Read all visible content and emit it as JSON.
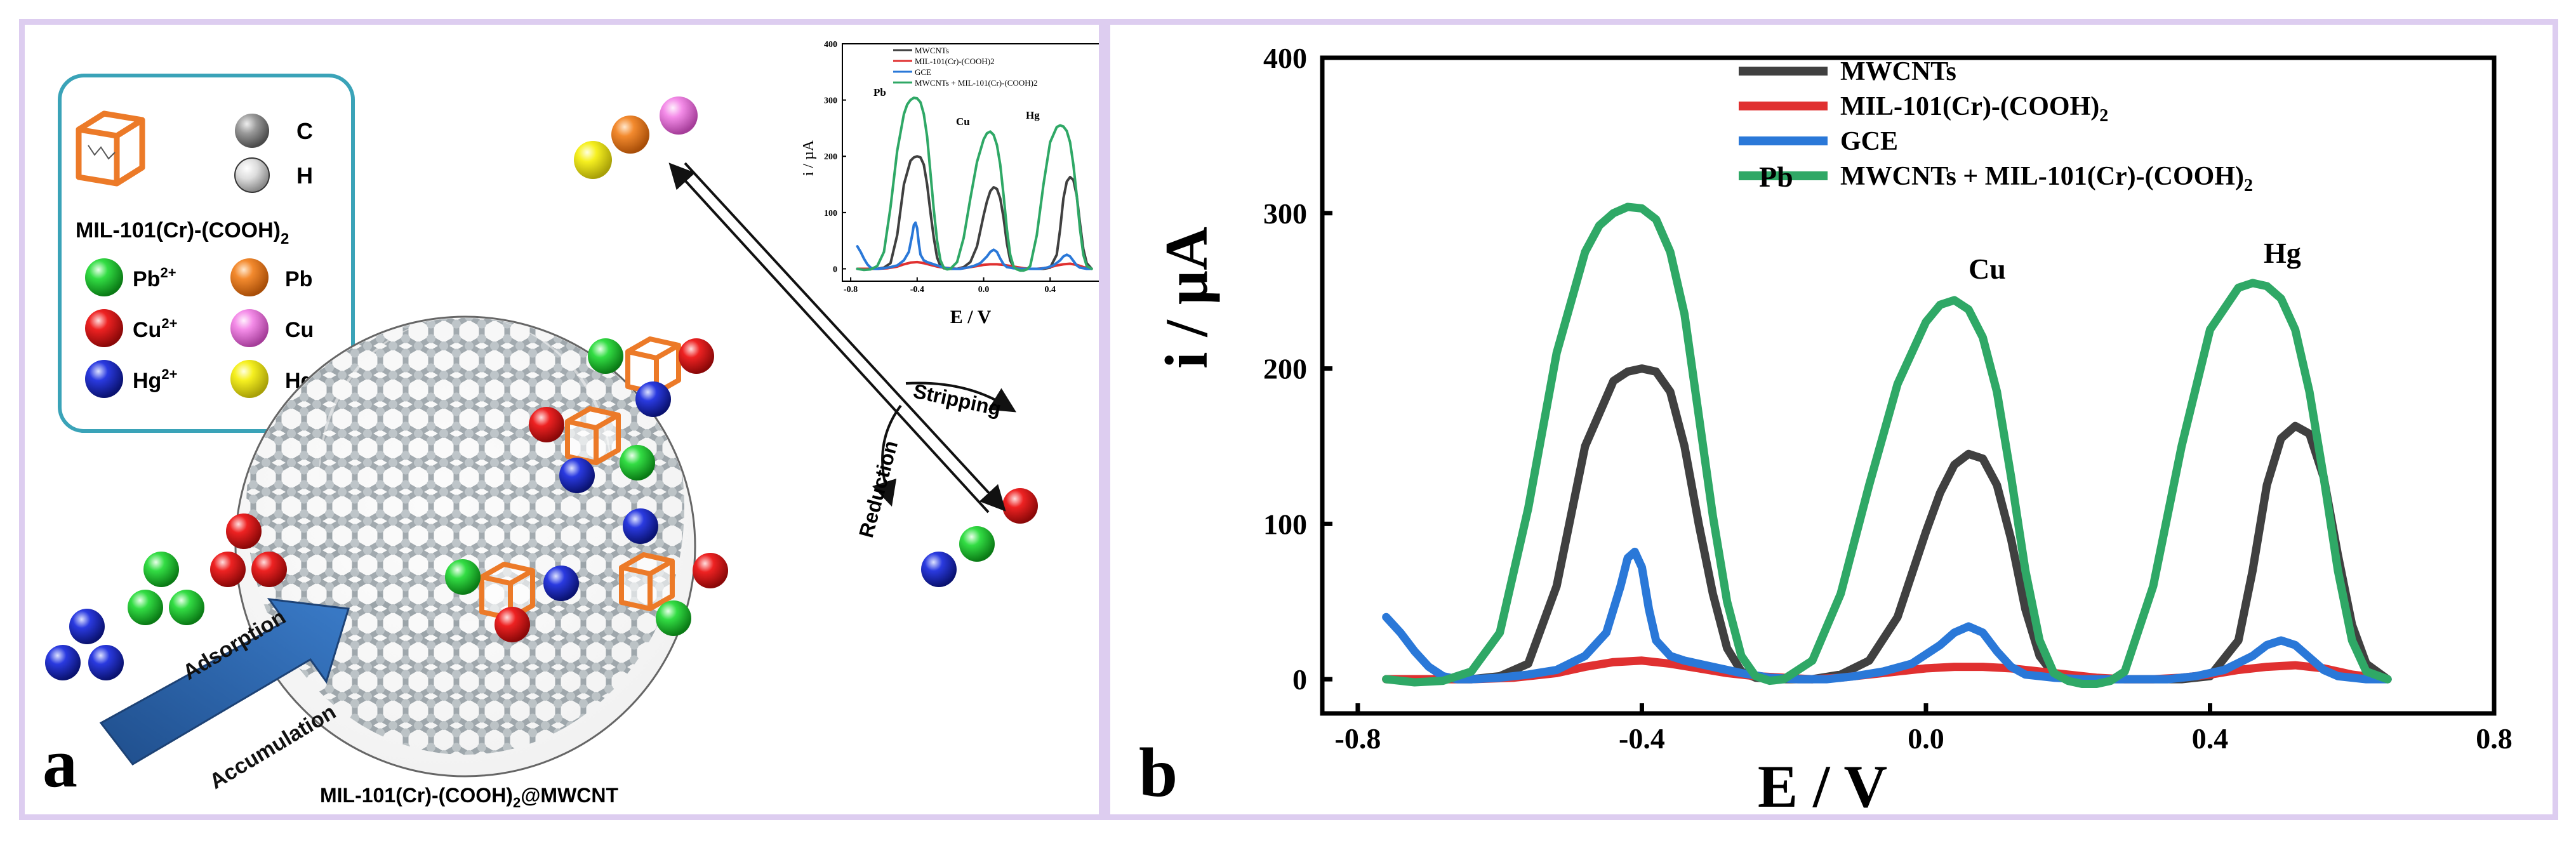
{
  "panel_a": {
    "panel_label": "a",
    "legend": {
      "framework_label": "MIL-101(Cr)-(COOH)",
      "framework_sub": "2",
      "carbon": "C",
      "hydrogen": "H",
      "ions": [
        {
          "symbol": "Pb",
          "charge": "2+",
          "color": "#22cc33"
        },
        {
          "symbol": "Cu",
          "charge": "2+",
          "color": "#e02020"
        },
        {
          "symbol": "Hg",
          "charge": "2+",
          "color": "#2233cc"
        }
      ],
      "metals": [
        {
          "symbol": "Pb",
          "color": "#f08a30"
        },
        {
          "symbol": "Cu",
          "color": "#f27de8"
        },
        {
          "symbol": "Hg",
          "color": "#f6f020"
        }
      ]
    },
    "arrow_labels": {
      "adsorption": "Adsorption",
      "accumulation": "Accumulation",
      "reduction": "Reduction",
      "stripping": "Stripping"
    },
    "composite_label": "MIL-101(Cr)-(COOH)",
    "composite_sub": "2",
    "composite_suffix": "@MWCNT",
    "inset_text": {
      "ylabel": "i / µA",
      "xlabel": "E / V",
      "peaks": [
        "Pb",
        "Cu",
        "Hg"
      ],
      "legend": [
        "MWCNTs",
        "MIL-101(Cr)-(COOH)2",
        "GCE",
        "MWCNTs + MIL-101(Cr)-(COOH)2"
      ]
    }
  },
  "panel_b": {
    "panel_label": "b",
    "peak_labels": {
      "pb": "Pb",
      "cu": "Cu",
      "hg": "Hg"
    }
  },
  "chart_data": {
    "type": "line",
    "title": "",
    "xlabel": "E / V",
    "ylabel": "i / µA",
    "xlim": [
      -0.85,
      0.8
    ],
    "ylim": [
      -22,
      400
    ],
    "xticks": [
      -0.8,
      -0.4,
      0.0,
      0.4,
      0.8
    ],
    "xtick_labels": [
      "-0.8",
      "-0.4",
      "0.0",
      "0.4",
      "0.8"
    ],
    "yticks": [
      0,
      100,
      200,
      300,
      400
    ],
    "ytick_labels": [
      "0",
      "100",
      "200",
      "300",
      "400"
    ],
    "grid": false,
    "legend_position": "top",
    "series": [
      {
        "name": "MWCNTs",
        "color": "#404040",
        "x": [
          -0.76,
          -0.72,
          -0.68,
          -0.64,
          -0.6,
          -0.56,
          -0.52,
          -0.48,
          -0.44,
          -0.42,
          -0.4,
          -0.38,
          -0.36,
          -0.34,
          -0.32,
          -0.3,
          -0.28,
          -0.26,
          -0.24,
          -0.2,
          -0.16,
          -0.12,
          -0.08,
          -0.04,
          0.0,
          0.02,
          0.04,
          0.06,
          0.08,
          0.1,
          0.12,
          0.14,
          0.16,
          0.18,
          0.2,
          0.24,
          0.28,
          0.32,
          0.36,
          0.4,
          0.44,
          0.46,
          0.48,
          0.5,
          0.52,
          0.54,
          0.56,
          0.58,
          0.6,
          0.62,
          0.65
        ],
        "y": [
          0,
          0,
          0,
          0,
          2,
          10,
          60,
          150,
          192,
          198,
          200,
          198,
          185,
          150,
          100,
          55,
          20,
          5,
          1,
          0,
          0,
          3,
          12,
          40,
          95,
          120,
          138,
          145,
          142,
          125,
          90,
          45,
          15,
          3,
          0,
          0,
          0,
          0,
          0,
          2,
          25,
          70,
          125,
          155,
          163,
          158,
          130,
          80,
          35,
          10,
          0
        ]
      },
      {
        "name": "MIL-101(Cr)-(COOH)2",
        "color": "#e03030",
        "x": [
          -0.76,
          -0.7,
          -0.64,
          -0.58,
          -0.52,
          -0.48,
          -0.44,
          -0.4,
          -0.36,
          -0.32,
          -0.28,
          -0.24,
          -0.2,
          -0.16,
          -0.12,
          -0.08,
          -0.04,
          0.0,
          0.04,
          0.08,
          0.12,
          0.16,
          0.2,
          0.24,
          0.28,
          0.32,
          0.36,
          0.4,
          0.44,
          0.48,
          0.52,
          0.56,
          0.6,
          0.65
        ],
        "y": [
          0,
          0,
          0,
          1,
          4,
          8,
          11,
          12,
          10,
          7,
          4,
          2,
          1,
          0,
          1,
          3,
          5,
          7,
          8,
          8,
          7,
          5,
          3,
          1,
          0,
          0,
          1,
          3,
          6,
          8,
          9,
          7,
          3,
          0
        ]
      },
      {
        "name": "GCE",
        "color": "#2a78d8",
        "x": [
          -0.76,
          -0.74,
          -0.72,
          -0.7,
          -0.68,
          -0.66,
          -0.64,
          -0.6,
          -0.56,
          -0.52,
          -0.48,
          -0.45,
          -0.43,
          -0.42,
          -0.41,
          -0.4,
          -0.39,
          -0.38,
          -0.36,
          -0.34,
          -0.3,
          -0.26,
          -0.22,
          -0.18,
          -0.14,
          -0.1,
          -0.06,
          -0.02,
          0.02,
          0.04,
          0.06,
          0.08,
          0.1,
          0.12,
          0.14,
          0.18,
          0.22,
          0.26,
          0.3,
          0.34,
          0.38,
          0.42,
          0.46,
          0.48,
          0.5,
          0.52,
          0.54,
          0.56,
          0.58,
          0.62,
          0.65
        ],
        "y": [
          40,
          30,
          18,
          8,
          2,
          0,
          0,
          1,
          3,
          6,
          15,
          30,
          60,
          78,
          82,
          72,
          45,
          25,
          15,
          12,
          8,
          4,
          1,
          0,
          0,
          2,
          5,
          10,
          22,
          30,
          34,
          30,
          18,
          8,
          3,
          1,
          0,
          0,
          0,
          0,
          2,
          6,
          15,
          22,
          25,
          22,
          14,
          6,
          2,
          0,
          0
        ]
      },
      {
        "name": "MWCNTs + MIL-101(Cr)-(COOH)2",
        "color": "#2fa866",
        "x": [
          -0.76,
          -0.72,
          -0.68,
          -0.64,
          -0.6,
          -0.56,
          -0.52,
          -0.48,
          -0.46,
          -0.44,
          -0.42,
          -0.4,
          -0.38,
          -0.36,
          -0.34,
          -0.32,
          -0.3,
          -0.28,
          -0.26,
          -0.24,
          -0.22,
          -0.2,
          -0.16,
          -0.12,
          -0.08,
          -0.04,
          0.0,
          0.02,
          0.04,
          0.06,
          0.08,
          0.1,
          0.12,
          0.14,
          0.16,
          0.18,
          0.2,
          0.22,
          0.24,
          0.26,
          0.28,
          0.32,
          0.36,
          0.4,
          0.44,
          0.46,
          0.48,
          0.5,
          0.52,
          0.54,
          0.56,
          0.58,
          0.6,
          0.62,
          0.65
        ],
        "y": [
          0,
          -2,
          -1,
          5,
          30,
          110,
          210,
          275,
          292,
          300,
          304,
          303,
          296,
          275,
          235,
          170,
          105,
          50,
          15,
          2,
          -1,
          0,
          12,
          55,
          125,
          190,
          230,
          241,
          244,
          238,
          220,
          185,
          130,
          70,
          25,
          4,
          -1,
          -3,
          -3,
          -1,
          5,
          60,
          150,
          225,
          252,
          255,
          253,
          245,
          225,
          185,
          130,
          70,
          25,
          5,
          0
        ]
      }
    ]
  }
}
